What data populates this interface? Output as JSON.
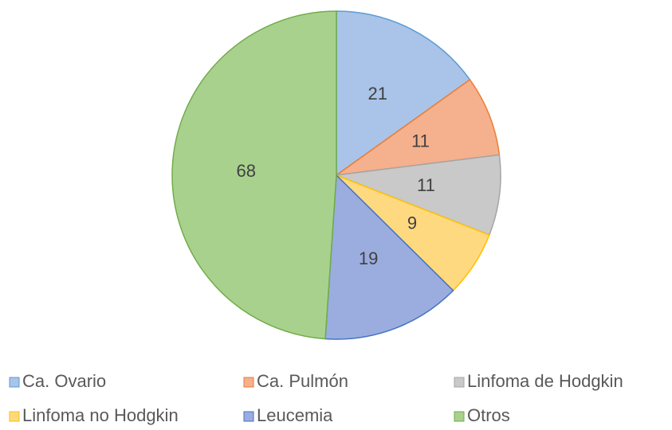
{
  "chart_data": {
    "type": "pie",
    "categories": [
      "Ca. Ovario",
      "Ca. Pulmón",
      "Linfoma de Hodgkin",
      "Linfoma no Hodgkin",
      "Leucemia",
      "Otros"
    ],
    "values": [
      21,
      11,
      11,
      9,
      19,
      68
    ],
    "colors": [
      "#a9c4e8",
      "#f5b08e",
      "#c9c9c9",
      "#ffd980",
      "#9badde",
      "#a9d18e"
    ],
    "edge_colors": [
      "#5b9bd5",
      "#ed7d31",
      "#a5a5a5",
      "#ffc000",
      "#4472c4",
      "#70ad47"
    ],
    "legend": "bottom"
  }
}
